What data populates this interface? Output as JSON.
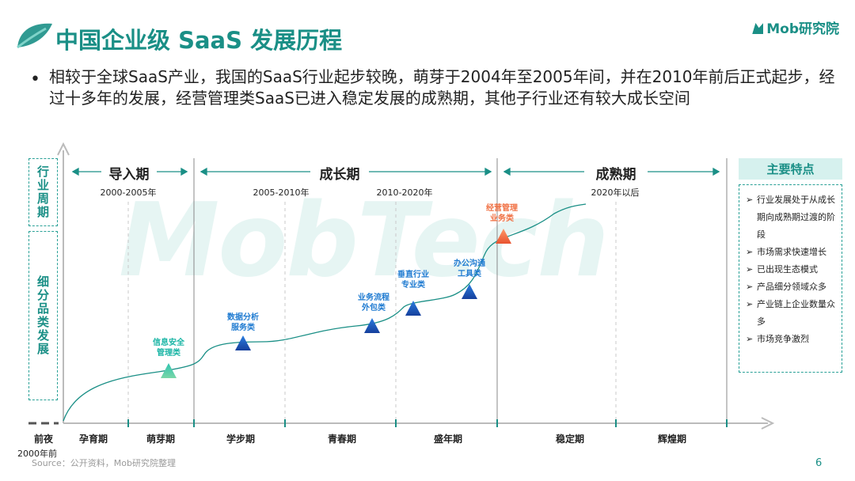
{
  "header": {
    "title": "中国企业级 SaaS 发展历程",
    "logo": "Mob研究院"
  },
  "bullet": "相较于全球SaaS产业，我国的SaaS行业起步较晚，萌芽于2004年至2005年间，并在2010年前后正式起步，经过十多年的发展，经营管理类SaaS已进入稳定发展的成熟期，其他子行业还有较大成长空间",
  "side_labels": {
    "cycle": "行业周期",
    "category": "细分品类发展"
  },
  "phases": [
    {
      "label": "导入期"
    },
    {
      "label": "成长期"
    },
    {
      "label": "成熟期"
    }
  ],
  "years": [
    "2000-2005年",
    "2005-2010年",
    "2010-2020年",
    "2020年以后"
  ],
  "stages": [
    "前夜",
    "孕育期",
    "萌芽期",
    "学步期",
    "青春期",
    "盛年期",
    "稳定期",
    "辉煌期"
  ],
  "stage_note": "2000年前",
  "categories": [
    {
      "label": [
        "信息安全",
        "管理类"
      ],
      "color": "#1ab5a5"
    },
    {
      "label": [
        "数据分析",
        "服务类"
      ],
      "color": "#1f5fbf"
    },
    {
      "label": [
        "业务流程",
        "外包类"
      ],
      "color": "#1f5fbf"
    },
    {
      "label": [
        "垂直行业",
        "专业类"
      ],
      "color": "#1f5fbf"
    },
    {
      "label": [
        "办公沟通",
        "工具类"
      ],
      "color": "#1f5fbf"
    },
    {
      "label": [
        "经营管理",
        "业务类"
      ],
      "color": "#f07043"
    }
  ],
  "features": {
    "title": "主要特点",
    "items": [
      "行业发展处于从成长期向成熟期过渡的阶段",
      "市场需求快速增长",
      "已出现生态模式",
      "产品细分领域众多",
      "产业链上企业数量众多",
      "市场竞争激烈"
    ]
  },
  "watermark": "MobTech",
  "source": "Source：公开资料，Mob研究院整理",
  "page_number": "6",
  "colors": {
    "brand": "#1a8f86",
    "accent_blue": "#1f7bd1",
    "accent_orange": "#f07043"
  }
}
